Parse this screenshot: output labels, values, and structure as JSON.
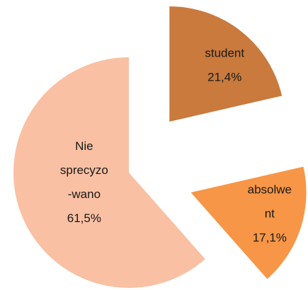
{
  "chart_data": {
    "type": "pie",
    "categories": [
      [
        "student"
      ],
      [
        "absolwe",
        "nt"
      ],
      [
        "Nie",
        "sprecyzo",
        "-wano"
      ]
    ],
    "values": [
      21.4,
      17.1,
      61.5
    ],
    "value_labels": [
      "21,4%",
      "17,1%",
      "61,5%"
    ],
    "colors": [
      "#c97a3c",
      "#f79646",
      "#f9c0a3"
    ]
  }
}
